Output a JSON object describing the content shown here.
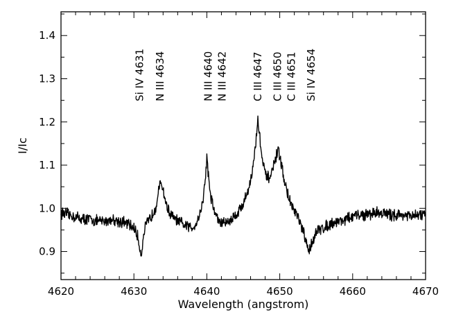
{
  "chart_data": {
    "type": "line",
    "title": "",
    "xlabel": "Wavelength (angstrom)",
    "ylabel": "I/Ic",
    "xlim": [
      4620,
      4670
    ],
    "ylim": [
      0.835,
      1.455
    ],
    "x_ticks": [
      4620,
      4630,
      4640,
      4650,
      4660,
      4670
    ],
    "x_tick_labels": [
      "4620",
      "4630",
      "4640",
      "4650",
      "4660",
      "4670"
    ],
    "y_ticks": [
      0.9,
      1.0,
      1.1,
      1.2,
      1.3,
      1.4
    ],
    "y_tick_labels": [
      "0.9",
      "1.0",
      "1.1",
      "1.2",
      "1.3",
      "1.4"
    ],
    "grid": false,
    "legend": "none",
    "line_color": "#000000",
    "series": [
      {
        "x": [
          4620.0,
          4621.0,
          4622.0,
          4623.0,
          4624.0,
          4625.0,
          4626.0,
          4627.0,
          4628.0,
          4629.0,
          4630.0,
          4630.5,
          4630.8,
          4631.0,
          4631.2,
          4631.5,
          4632.0,
          4632.5,
          4633.0,
          4633.4,
          4633.7,
          4634.0,
          4634.4,
          4635.0,
          4636.0,
          4637.0,
          4638.0,
          4638.5,
          4639.0,
          4639.5,
          4639.8,
          4640.0,
          4640.2,
          4640.5,
          4641.0,
          4641.5,
          4642.0,
          4643.0,
          4644.0,
          4645.0,
          4645.8,
          4646.3,
          4646.7,
          4647.0,
          4647.3,
          4647.7,
          4648.2,
          4648.8,
          4649.2,
          4649.6,
          4649.9,
          4650.3,
          4650.8,
          4651.5,
          4652.3,
          4652.8,
          4653.3,
          4653.7,
          4654.0,
          4654.3,
          4654.7,
          4655.3,
          4656.0,
          4657.0,
          4658.0,
          4659.0,
          4660.0,
          4661.0,
          4662.0,
          4663.0,
          4664.0,
          4665.0,
          4666.0,
          4667.0,
          4668.0,
          4669.0,
          4670.0
        ],
        "y": [
          0.99,
          0.985,
          0.98,
          0.975,
          0.975,
          0.97,
          0.97,
          0.975,
          0.97,
          0.965,
          0.955,
          0.935,
          0.91,
          0.89,
          0.92,
          0.955,
          0.97,
          0.985,
          1.005,
          1.04,
          1.06,
          1.045,
          1.01,
          0.985,
          0.97,
          0.96,
          0.955,
          0.965,
          0.985,
          1.02,
          1.07,
          1.12,
          1.08,
          1.03,
          0.995,
          0.975,
          0.965,
          0.97,
          0.985,
          1.01,
          1.05,
          1.09,
          1.15,
          1.205,
          1.16,
          1.1,
          1.07,
          1.075,
          1.1,
          1.125,
          1.13,
          1.095,
          1.05,
          1.01,
          0.985,
          0.965,
          0.94,
          0.915,
          0.9,
          0.915,
          0.935,
          0.95,
          0.955,
          0.965,
          0.97,
          0.975,
          0.98,
          0.985,
          0.985,
          0.99,
          0.99,
          0.985,
          0.985,
          0.985,
          0.98,
          0.985,
          0.985
        ]
      }
    ],
    "annotations": [
      {
        "x": 4630.8,
        "text": "Si IV 4631"
      },
      {
        "x": 4633.6,
        "text": "N III 4634"
      },
      {
        "x": 4640.2,
        "text": "N III 4640"
      },
      {
        "x": 4642.1,
        "text": "N III 4642"
      },
      {
        "x": 4647.0,
        "text": "C III 4647"
      },
      {
        "x": 4649.7,
        "text": "C III 4650"
      },
      {
        "x": 4651.6,
        "text": "C III 4651"
      },
      {
        "x": 4654.3,
        "text": "Si IV 4654"
      }
    ]
  }
}
